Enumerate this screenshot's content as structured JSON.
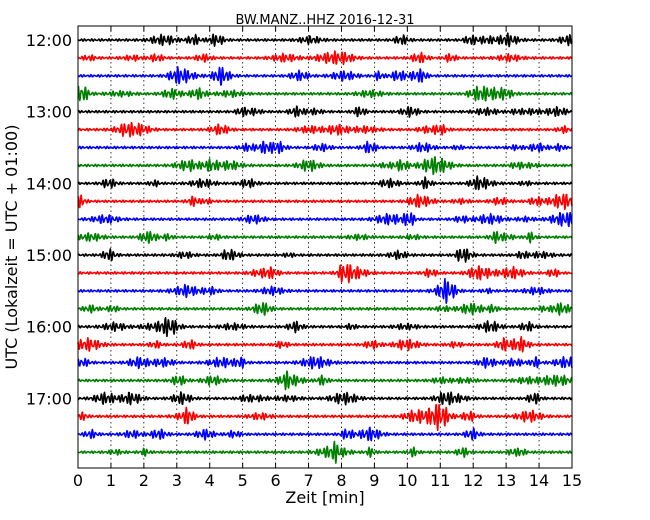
{
  "chart_data": {
    "type": "line",
    "title": "BW.MANZ..HHZ 2016-12-31",
    "xlabel": "Zeit  [min]",
    "ylabel": "UTC (Lokalzeit = UTC + 01:00)",
    "xlim": [
      0,
      15
    ],
    "x_ticks": [
      "0",
      "1",
      "2",
      "3",
      "4",
      "5",
      "6",
      "7",
      "8",
      "9",
      "10",
      "11",
      "12",
      "13",
      "14",
      "15"
    ],
    "y_ticks": [
      "12:00",
      "13:00",
      "14:00",
      "15:00",
      "16:00",
      "17:00"
    ],
    "grid": "vertical dotted lines at each minute",
    "trace_minutes": 15,
    "start_time": "12:00",
    "colors_cycle": [
      "#000000",
      "#ff0000",
      "#0000ff",
      "#008000"
    ],
    "series": [
      {
        "start": "12:00",
        "color": "#000000"
      },
      {
        "start": "12:15",
        "color": "#ff0000"
      },
      {
        "start": "12:30",
        "color": "#0000ff"
      },
      {
        "start": "12:45",
        "color": "#008000"
      },
      {
        "start": "13:00",
        "color": "#000000"
      },
      {
        "start": "13:15",
        "color": "#ff0000"
      },
      {
        "start": "13:30",
        "color": "#0000ff"
      },
      {
        "start": "13:45",
        "color": "#008000"
      },
      {
        "start": "14:00",
        "color": "#000000"
      },
      {
        "start": "14:15",
        "color": "#ff0000"
      },
      {
        "start": "14:30",
        "color": "#0000ff"
      },
      {
        "start": "14:45",
        "color": "#008000"
      },
      {
        "start": "15:00",
        "color": "#000000"
      },
      {
        "start": "15:15",
        "color": "#ff0000"
      },
      {
        "start": "15:30",
        "color": "#0000ff"
      },
      {
        "start": "15:45",
        "color": "#008000"
      },
      {
        "start": "16:00",
        "color": "#000000"
      },
      {
        "start": "16:15",
        "color": "#ff0000"
      },
      {
        "start": "16:30",
        "color": "#0000ff"
      },
      {
        "start": "16:45",
        "color": "#008000"
      },
      {
        "start": "17:00",
        "color": "#000000"
      },
      {
        "start": "17:15",
        "color": "#ff0000"
      },
      {
        "start": "17:30",
        "color": "#0000ff"
      },
      {
        "start": "17:45",
        "color": "#008000"
      }
    ]
  }
}
